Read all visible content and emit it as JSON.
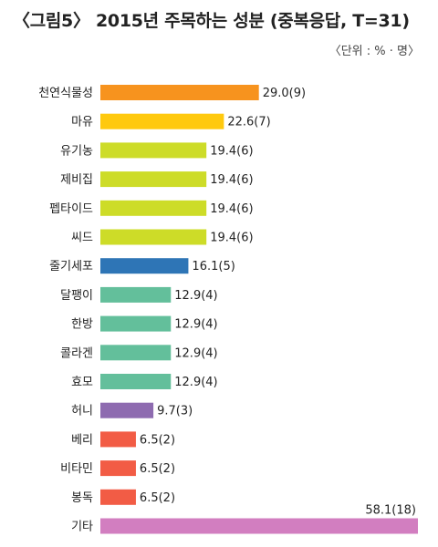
{
  "title": "〈그림5〉 2015년 주목하는 성분 (중복응답, T=31)",
  "unit_note": "〈단위 : % · 명〉",
  "chart_data": {
    "type": "bar",
    "orientation": "horizontal",
    "title": "〈그림5〉 2015년 주목하는 성분 (중복응답, T=31)",
    "xlabel": "",
    "ylabel": "",
    "xlim": [
      0,
      58.1
    ],
    "grid": false,
    "categories": [
      "천연식물성",
      "마유",
      "유기농",
      "제비집",
      "펩타이드",
      "씨드",
      "줄기세포",
      "달팽이",
      "한방",
      "콜라겐",
      "효모",
      "허니",
      "베리",
      "비타민",
      "봉독",
      "기타"
    ],
    "values": [
      29.0,
      22.6,
      19.4,
      19.4,
      19.4,
      19.4,
      16.1,
      12.9,
      12.9,
      12.9,
      12.9,
      9.7,
      6.5,
      6.5,
      6.5,
      58.1
    ],
    "counts": [
      9,
      7,
      6,
      6,
      6,
      6,
      5,
      4,
      4,
      4,
      4,
      3,
      2,
      2,
      2,
      18
    ],
    "value_labels": [
      "29.0(9)",
      "22.6(7)",
      "19.4(6)",
      "19.4(6)",
      "19.4(6)",
      "19.4(6)",
      "16.1(5)",
      "12.9(4)",
      "12.9(4)",
      "12.9(4)",
      "12.9(4)",
      "9.7(3)",
      "6.5(2)",
      "6.5(2)",
      "6.5(2)",
      "58.1(18)"
    ],
    "colors": [
      "#f7931e",
      "#ffc90e",
      "#cddc28",
      "#cddc28",
      "#cddc28",
      "#cddc28",
      "#2e75b6",
      "#63bf9b",
      "#63bf9b",
      "#63bf9b",
      "#63bf9b",
      "#8e6bb0",
      "#f25c45",
      "#f25c45",
      "#f25c45",
      "#d27ec0"
    ]
  }
}
